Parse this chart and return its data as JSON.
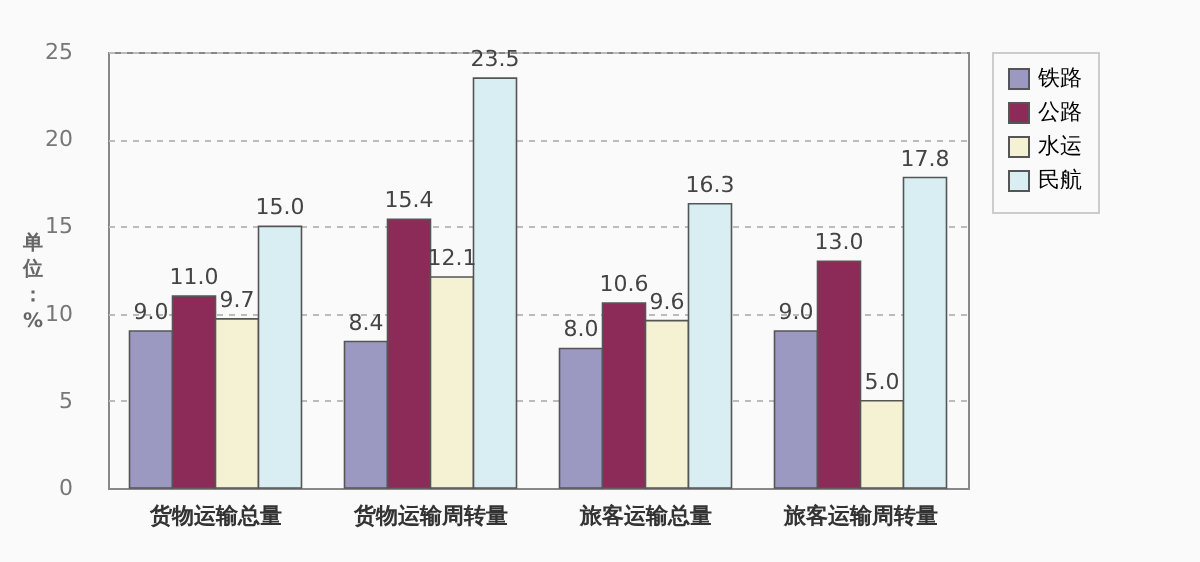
{
  "chart_data": {
    "type": "bar",
    "ylabel": "单位：%",
    "categories": [
      "货物运输总量",
      "货物运输周转量",
      "旅客运输总量",
      "旅客运输周转量"
    ],
    "series": [
      {
        "name": "铁路",
        "color": "#9b98c2",
        "values": [
          9.0,
          8.4,
          8.0,
          9.0
        ],
        "value_labels": [
          "9.0",
          "8.4",
          "8.0",
          "9.0"
        ]
      },
      {
        "name": "公路",
        "color": "#8c2b58",
        "values": [
          11.0,
          15.4,
          10.6,
          13.0
        ],
        "value_labels": [
          "11.0",
          "15.4",
          "10.6",
          "13.0"
        ]
      },
      {
        "name": "水运",
        "color": "#f4f2d2",
        "values": [
          9.7,
          12.1,
          9.6,
          5.0
        ],
        "value_labels": [
          "9.7",
          "12.1",
          "9.6",
          "5.0"
        ]
      },
      {
        "name": "民航",
        "color": "#d8eef2",
        "values": [
          15.0,
          23.5,
          16.3,
          17.8
        ],
        "value_labels": [
          "15.0",
          "23.5",
          "16.3",
          "17.8"
        ]
      }
    ],
    "ylim": [
      0,
      25
    ],
    "yticks": [
      0,
      5,
      10,
      15,
      20,
      25
    ],
    "grid": "y",
    "legend": "right"
  }
}
